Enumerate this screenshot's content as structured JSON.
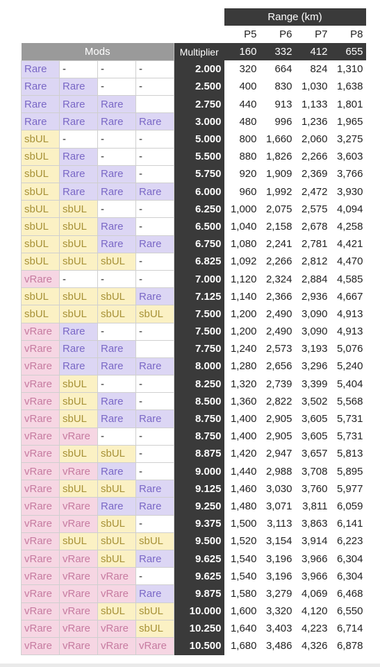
{
  "header": {
    "range_label": "Range (km)",
    "mods_label": "Mods",
    "multiplier_label": "Multiplier",
    "columns": [
      "P5",
      "P6",
      "P7",
      "P8"
    ],
    "base_ranges": [
      "160",
      "332",
      "412",
      "655"
    ]
  },
  "colors": {
    "rare_bg": "#dcd6f4",
    "rare_text": "#7a68c6",
    "sbul_bg": "#fbf1c4",
    "sbul_text": "#a79136",
    "vrare_bg": "#f6d6e3",
    "vrare_text": "#c67ba0",
    "header_dark": "#3a3a3a",
    "mods_header": "#9a9a9a"
  },
  "rows": [
    {
      "mods": [
        "Rare",
        "-",
        "-",
        "-"
      ],
      "multiplier": "2.000",
      "ranges": [
        "320",
        "664",
        "824",
        "1,310"
      ]
    },
    {
      "mods": [
        "Rare",
        "Rare",
        "-",
        "-"
      ],
      "multiplier": "2.500",
      "ranges": [
        "400",
        "830",
        "1,030",
        "1,638"
      ]
    },
    {
      "mods": [
        "Rare",
        "Rare",
        "Rare",
        ""
      ],
      "multiplier": "2.750",
      "ranges": [
        "440",
        "913",
        "1,133",
        "1,801"
      ]
    },
    {
      "mods": [
        "Rare",
        "Rare",
        "Rare",
        "Rare"
      ],
      "multiplier": "3.000",
      "ranges": [
        "480",
        "996",
        "1,236",
        "1,965"
      ]
    },
    {
      "mods": [
        "sbUL",
        "-",
        "-",
        "-"
      ],
      "multiplier": "5.000",
      "ranges": [
        "800",
        "1,660",
        "2,060",
        "3,275"
      ]
    },
    {
      "mods": [
        "sbUL",
        "Rare",
        "-",
        "-"
      ],
      "multiplier": "5.500",
      "ranges": [
        "880",
        "1,826",
        "2,266",
        "3,603"
      ]
    },
    {
      "mods": [
        "sbUL",
        "Rare",
        "Rare",
        "-"
      ],
      "multiplier": "5.750",
      "ranges": [
        "920",
        "1,909",
        "2,369",
        "3,766"
      ]
    },
    {
      "mods": [
        "sbUL",
        "Rare",
        "Rare",
        "Rare"
      ],
      "multiplier": "6.000",
      "ranges": [
        "960",
        "1,992",
        "2,472",
        "3,930"
      ]
    },
    {
      "mods": [
        "sbUL",
        "sbUL",
        "-",
        "-"
      ],
      "multiplier": "6.250",
      "ranges": [
        "1,000",
        "2,075",
        "2,575",
        "4,094"
      ]
    },
    {
      "mods": [
        "sbUL",
        "sbUL",
        "Rare",
        "-"
      ],
      "multiplier": "6.500",
      "ranges": [
        "1,040",
        "2,158",
        "2,678",
        "4,258"
      ]
    },
    {
      "mods": [
        "sbUL",
        "sbUL",
        "Rare",
        "Rare"
      ],
      "multiplier": "6.750",
      "ranges": [
        "1,080",
        "2,241",
        "2,781",
        "4,421"
      ]
    },
    {
      "mods": [
        "sbUL",
        "sbUL",
        "sbUL",
        "-"
      ],
      "multiplier": "6.825",
      "ranges": [
        "1,092",
        "2,266",
        "2,812",
        "4,470"
      ]
    },
    {
      "mods": [
        "vRare",
        "-",
        "-",
        "-"
      ],
      "multiplier": "7.000",
      "ranges": [
        "1,120",
        "2,324",
        "2,884",
        "4,585"
      ]
    },
    {
      "mods": [
        "sbUL",
        "sbUL",
        "sbUL",
        "Rare"
      ],
      "multiplier": "7.125",
      "ranges": [
        "1,140",
        "2,366",
        "2,936",
        "4,667"
      ]
    },
    {
      "mods": [
        "sbUL",
        "sbUL",
        "sbUL",
        "sbUL"
      ],
      "multiplier": "7.500",
      "ranges": [
        "1,200",
        "2,490",
        "3,090",
        "4,913"
      ]
    },
    {
      "mods": [
        "vRare",
        "Rare",
        "-",
        "-"
      ],
      "multiplier": "7.500",
      "ranges": [
        "1,200",
        "2,490",
        "3,090",
        "4,913"
      ]
    },
    {
      "mods": [
        "vRare",
        "Rare",
        "Rare",
        ""
      ],
      "multiplier": "7.750",
      "ranges": [
        "1,240",
        "2,573",
        "3,193",
        "5,076"
      ]
    },
    {
      "mods": [
        "vRare",
        "Rare",
        "Rare",
        "Rare"
      ],
      "multiplier": "8.000",
      "ranges": [
        "1,280",
        "2,656",
        "3,296",
        "5,240"
      ]
    },
    {
      "mods": [
        "vRare",
        "sbUL",
        "-",
        "-"
      ],
      "multiplier": "8.250",
      "ranges": [
        "1,320",
        "2,739",
        "3,399",
        "5,404"
      ]
    },
    {
      "mods": [
        "vRare",
        "sbUL",
        "Rare",
        "-"
      ],
      "multiplier": "8.500",
      "ranges": [
        "1,360",
        "2,822",
        "3,502",
        "5,568"
      ]
    },
    {
      "mods": [
        "vRare",
        "sbUL",
        "Rare",
        "Rare"
      ],
      "multiplier": "8.750",
      "ranges": [
        "1,400",
        "2,905",
        "3,605",
        "5,731"
      ]
    },
    {
      "mods": [
        "vRare",
        "vRare",
        "-",
        "-"
      ],
      "multiplier": "8.750",
      "ranges": [
        "1,400",
        "2,905",
        "3,605",
        "5,731"
      ]
    },
    {
      "mods": [
        "vRare",
        "sbUL",
        "sbUL",
        "-"
      ],
      "multiplier": "8.875",
      "ranges": [
        "1,420",
        "2,947",
        "3,657",
        "5,813"
      ]
    },
    {
      "mods": [
        "vRare",
        "vRare",
        "Rare",
        "-"
      ],
      "multiplier": "9.000",
      "ranges": [
        "1,440",
        "2,988",
        "3,708",
        "5,895"
      ]
    },
    {
      "mods": [
        "vRare",
        "sbUL",
        "sbUL",
        "Rare"
      ],
      "multiplier": "9.125",
      "ranges": [
        "1,460",
        "3,030",
        "3,760",
        "5,977"
      ]
    },
    {
      "mods": [
        "vRare",
        "vRare",
        "Rare",
        "Rare"
      ],
      "multiplier": "9.250",
      "ranges": [
        "1,480",
        "3,071",
        "3,811",
        "6,059"
      ]
    },
    {
      "mods": [
        "vRare",
        "vRare",
        "sbUL",
        "-"
      ],
      "multiplier": "9.375",
      "ranges": [
        "1,500",
        "3,113",
        "3,863",
        "6,141"
      ]
    },
    {
      "mods": [
        "vRare",
        "sbUL",
        "sbUL",
        "sbUL"
      ],
      "multiplier": "9.500",
      "ranges": [
        "1,520",
        "3,154",
        "3,914",
        "6,223"
      ]
    },
    {
      "mods": [
        "vRare",
        "vRare",
        "sbUL",
        "Rare"
      ],
      "multiplier": "9.625",
      "ranges": [
        "1,540",
        "3,196",
        "3,966",
        "6,304"
      ]
    },
    {
      "mods": [
        "vRare",
        "vRare",
        "vRare",
        "-"
      ],
      "multiplier": "9.625",
      "ranges": [
        "1,540",
        "3,196",
        "3,966",
        "6,304"
      ]
    },
    {
      "mods": [
        "vRare",
        "vRare",
        "vRare",
        "Rare"
      ],
      "multiplier": "9.875",
      "ranges": [
        "1,580",
        "3,279",
        "4,069",
        "6,468"
      ]
    },
    {
      "mods": [
        "vRare",
        "vRare",
        "sbUL",
        "sbUL"
      ],
      "multiplier": "10.000",
      "ranges": [
        "1,600",
        "3,320",
        "4,120",
        "6,550"
      ]
    },
    {
      "mods": [
        "vRare",
        "vRare",
        "vRare",
        "sbUL"
      ],
      "multiplier": "10.250",
      "ranges": [
        "1,640",
        "3,403",
        "4,223",
        "6,714"
      ]
    },
    {
      "mods": [
        "vRare",
        "vRare",
        "vRare",
        "vRare"
      ],
      "multiplier": "10.500",
      "ranges": [
        "1,680",
        "3,486",
        "4,326",
        "6,878"
      ]
    }
  ]
}
